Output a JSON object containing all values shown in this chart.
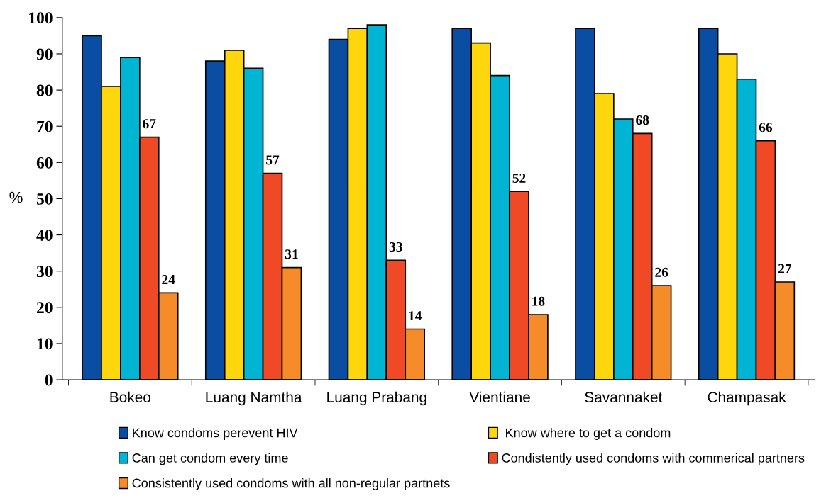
{
  "chart_data": {
    "type": "bar",
    "ylabel": "%",
    "categories": [
      "Bokeo",
      "Luang Namtha",
      "Luang Prabang",
      "Vientiane",
      "Savannaket",
      "Champasak"
    ],
    "series": [
      {
        "name": "Know condoms perevent HIV",
        "color": "#0a4ea3",
        "values": [
          95,
          88,
          94,
          97,
          97,
          97
        ]
      },
      {
        "name": " Know where to get a condom",
        "color": "#fdd60b",
        "values": [
          81,
          91,
          97,
          93,
          79,
          90
        ]
      },
      {
        "name": "Can get condom every time",
        "color": "#00b5d3",
        "values": [
          89,
          86,
          98,
          84,
          72,
          83
        ]
      },
      {
        "name": "Condistently used condoms with commerical partners",
        "color": "#ef4a25",
        "values": [
          67,
          57,
          33,
          52,
          68,
          66
        ],
        "value_labels": [
          "67",
          "57",
          "33",
          "52",
          "68",
          "66"
        ]
      },
      {
        "name": "Consistently used condoms with all non-regular partnets",
        "color": "#f68b2a",
        "values": [
          24,
          31,
          14,
          18,
          26,
          27
        ],
        "value_labels": [
          "24",
          "31",
          "14",
          "18",
          "26",
          "27"
        ]
      }
    ],
    "ylim": [
      0,
      100
    ],
    "yticks": [
      0,
      10,
      20,
      30,
      40,
      50,
      60,
      70,
      80,
      90,
      100
    ],
    "grid": false,
    "legend": "bottom"
  }
}
